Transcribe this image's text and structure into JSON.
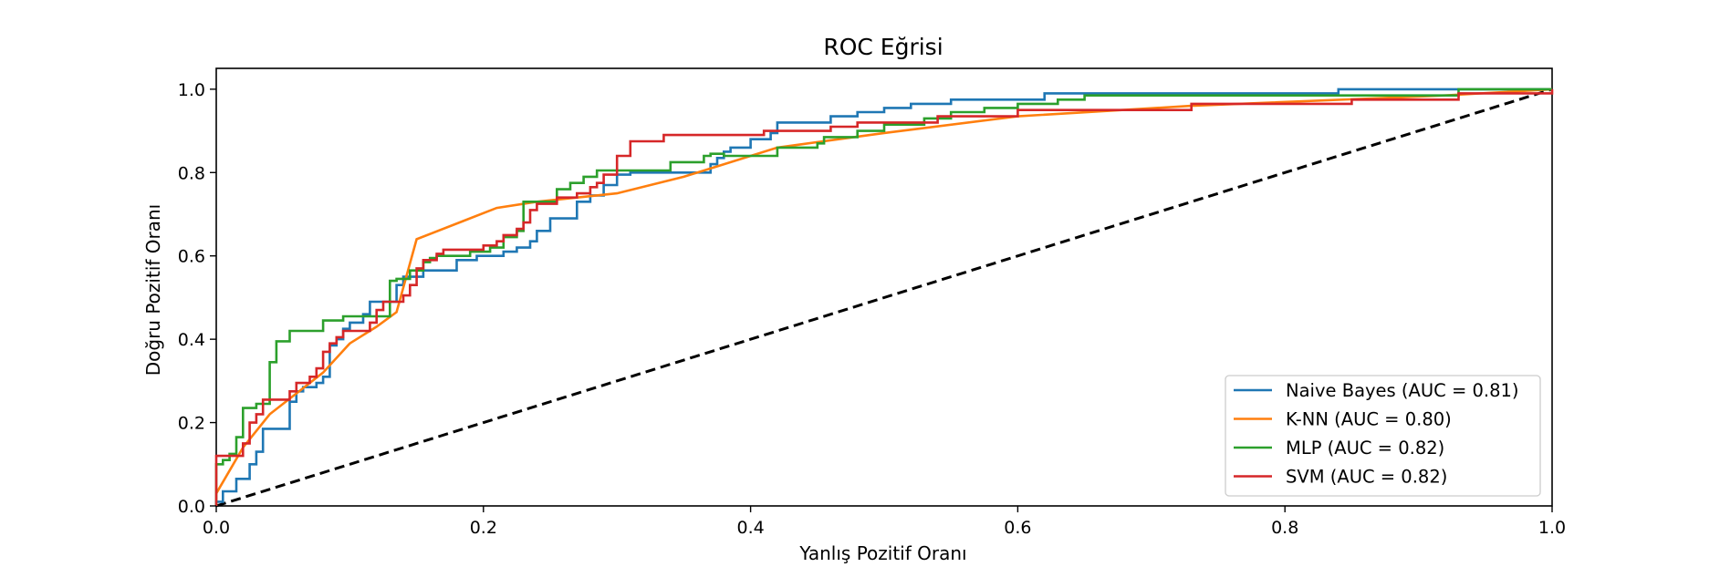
{
  "chart_data": {
    "type": "line",
    "title": "ROC Eğrisi",
    "xlabel": "Yanlış Pozitif Oranı",
    "ylabel": "Doğru Pozitif Oranı",
    "xlim": [
      0,
      1
    ],
    "ylim": [
      0,
      1.05
    ],
    "xticks": [
      0.0,
      0.2,
      0.4,
      0.6,
      0.8,
      1.0
    ],
    "yticks": [
      0.0,
      0.2,
      0.4,
      0.6,
      0.8,
      1.0
    ],
    "xtick_labels": [
      "0.0",
      "0.2",
      "0.4",
      "0.6",
      "0.8",
      "1.0"
    ],
    "ytick_labels": [
      "0.0",
      "0.2",
      "0.4",
      "0.6",
      "0.8",
      "1.0"
    ],
    "grid": false,
    "legend_position": "lower-right",
    "series": [
      {
        "name": "Naive Bayes (AUC = 0.81)",
        "color": "#1f77b4",
        "step": true,
        "points": [
          [
            0,
            0
          ],
          [
            0,
            0.01
          ],
          [
            0.005,
            0.01
          ],
          [
            0.005,
            0.035
          ],
          [
            0.015,
            0.035
          ],
          [
            0.015,
            0.065
          ],
          [
            0.025,
            0.065
          ],
          [
            0.025,
            0.1
          ],
          [
            0.03,
            0.1
          ],
          [
            0.03,
            0.13
          ],
          [
            0.035,
            0.13
          ],
          [
            0.035,
            0.185
          ],
          [
            0.055,
            0.185
          ],
          [
            0.055,
            0.25
          ],
          [
            0.06,
            0.25
          ],
          [
            0.06,
            0.275
          ],
          [
            0.065,
            0.275
          ],
          [
            0.065,
            0.285
          ],
          [
            0.075,
            0.285
          ],
          [
            0.075,
            0.295
          ],
          [
            0.08,
            0.295
          ],
          [
            0.08,
            0.31
          ],
          [
            0.085,
            0.31
          ],
          [
            0.085,
            0.385
          ],
          [
            0.09,
            0.385
          ],
          [
            0.09,
            0.4
          ],
          [
            0.095,
            0.4
          ],
          [
            0.095,
            0.425
          ],
          [
            0.1,
            0.425
          ],
          [
            0.1,
            0.44
          ],
          [
            0.11,
            0.44
          ],
          [
            0.11,
            0.46
          ],
          [
            0.115,
            0.46
          ],
          [
            0.115,
            0.49
          ],
          [
            0.135,
            0.49
          ],
          [
            0.135,
            0.53
          ],
          [
            0.14,
            0.53
          ],
          [
            0.14,
            0.55
          ],
          [
            0.155,
            0.55
          ],
          [
            0.155,
            0.565
          ],
          [
            0.18,
            0.565
          ],
          [
            0.18,
            0.59
          ],
          [
            0.195,
            0.59
          ],
          [
            0.195,
            0.6
          ],
          [
            0.215,
            0.6
          ],
          [
            0.215,
            0.61
          ],
          [
            0.225,
            0.61
          ],
          [
            0.225,
            0.62
          ],
          [
            0.235,
            0.62
          ],
          [
            0.235,
            0.635
          ],
          [
            0.24,
            0.635
          ],
          [
            0.24,
            0.66
          ],
          [
            0.25,
            0.66
          ],
          [
            0.25,
            0.69
          ],
          [
            0.27,
            0.69
          ],
          [
            0.27,
            0.73
          ],
          [
            0.28,
            0.73
          ],
          [
            0.28,
            0.745
          ],
          [
            0.29,
            0.745
          ],
          [
            0.29,
            0.77
          ],
          [
            0.3,
            0.77
          ],
          [
            0.3,
            0.795
          ],
          [
            0.31,
            0.795
          ],
          [
            0.31,
            0.8
          ],
          [
            0.37,
            0.8
          ],
          [
            0.37,
            0.82
          ],
          [
            0.375,
            0.82
          ],
          [
            0.375,
            0.835
          ],
          [
            0.38,
            0.835
          ],
          [
            0.38,
            0.85
          ],
          [
            0.385,
            0.85
          ],
          [
            0.385,
            0.86
          ],
          [
            0.4,
            0.86
          ],
          [
            0.4,
            0.88
          ],
          [
            0.415,
            0.88
          ],
          [
            0.415,
            0.895
          ],
          [
            0.42,
            0.895
          ],
          [
            0.42,
            0.92
          ],
          [
            0.46,
            0.92
          ],
          [
            0.46,
            0.935
          ],
          [
            0.48,
            0.935
          ],
          [
            0.48,
            0.945
          ],
          [
            0.5,
            0.945
          ],
          [
            0.5,
            0.955
          ],
          [
            0.52,
            0.955
          ],
          [
            0.52,
            0.965
          ],
          [
            0.55,
            0.965
          ],
          [
            0.55,
            0.975
          ],
          [
            0.62,
            0.975
          ],
          [
            0.62,
            0.99
          ],
          [
            0.84,
            0.99
          ],
          [
            0.84,
            1.0
          ],
          [
            1.0,
            1.0
          ]
        ]
      },
      {
        "name": "K-NN (AUC = 0.80)",
        "color": "#ff7f0e",
        "step": false,
        "points": [
          [
            0,
            0.03
          ],
          [
            0.02,
            0.14
          ],
          [
            0.04,
            0.22
          ],
          [
            0.06,
            0.27
          ],
          [
            0.08,
            0.32
          ],
          [
            0.1,
            0.39
          ],
          [
            0.12,
            0.43
          ],
          [
            0.135,
            0.465
          ],
          [
            0.15,
            0.64
          ],
          [
            0.21,
            0.715
          ],
          [
            0.24,
            0.73
          ],
          [
            0.3,
            0.75
          ],
          [
            0.35,
            0.79
          ],
          [
            0.42,
            0.86
          ],
          [
            0.5,
            0.895
          ],
          [
            0.6,
            0.935
          ],
          [
            0.73,
            0.96
          ],
          [
            0.92,
            0.985
          ],
          [
            1.0,
            1.0
          ]
        ]
      },
      {
        "name": "MLP (AUC = 0.82)",
        "color": "#2ca02c",
        "step": true,
        "points": [
          [
            0,
            0
          ],
          [
            0,
            0.1
          ],
          [
            0.005,
            0.1
          ],
          [
            0.005,
            0.11
          ],
          [
            0.01,
            0.11
          ],
          [
            0.01,
            0.125
          ],
          [
            0.015,
            0.125
          ],
          [
            0.015,
            0.165
          ],
          [
            0.02,
            0.165
          ],
          [
            0.02,
            0.235
          ],
          [
            0.03,
            0.235
          ],
          [
            0.03,
            0.245
          ],
          [
            0.04,
            0.245
          ],
          [
            0.04,
            0.345
          ],
          [
            0.045,
            0.345
          ],
          [
            0.045,
            0.395
          ],
          [
            0.055,
            0.395
          ],
          [
            0.055,
            0.42
          ],
          [
            0.08,
            0.42
          ],
          [
            0.08,
            0.445
          ],
          [
            0.095,
            0.445
          ],
          [
            0.095,
            0.455
          ],
          [
            0.13,
            0.455
          ],
          [
            0.13,
            0.54
          ],
          [
            0.135,
            0.54
          ],
          [
            0.135,
            0.545
          ],
          [
            0.145,
            0.545
          ],
          [
            0.145,
            0.565
          ],
          [
            0.155,
            0.565
          ],
          [
            0.155,
            0.585
          ],
          [
            0.16,
            0.585
          ],
          [
            0.16,
            0.595
          ],
          [
            0.165,
            0.595
          ],
          [
            0.165,
            0.6
          ],
          [
            0.19,
            0.6
          ],
          [
            0.19,
            0.61
          ],
          [
            0.205,
            0.61
          ],
          [
            0.205,
            0.62
          ],
          [
            0.215,
            0.62
          ],
          [
            0.215,
            0.645
          ],
          [
            0.225,
            0.645
          ],
          [
            0.225,
            0.66
          ],
          [
            0.23,
            0.66
          ],
          [
            0.23,
            0.73
          ],
          [
            0.255,
            0.73
          ],
          [
            0.255,
            0.76
          ],
          [
            0.265,
            0.76
          ],
          [
            0.265,
            0.775
          ],
          [
            0.275,
            0.775
          ],
          [
            0.275,
            0.79
          ],
          [
            0.285,
            0.79
          ],
          [
            0.285,
            0.805
          ],
          [
            0.34,
            0.805
          ],
          [
            0.34,
            0.825
          ],
          [
            0.365,
            0.825
          ],
          [
            0.365,
            0.84
          ],
          [
            0.37,
            0.84
          ],
          [
            0.37,
            0.845
          ],
          [
            0.38,
            0.845
          ],
          [
            0.38,
            0.84
          ],
          [
            0.42,
            0.84
          ],
          [
            0.42,
            0.86
          ],
          [
            0.45,
            0.86
          ],
          [
            0.45,
            0.87
          ],
          [
            0.455,
            0.87
          ],
          [
            0.455,
            0.885
          ],
          [
            0.48,
            0.885
          ],
          [
            0.48,
            0.9
          ],
          [
            0.5,
            0.9
          ],
          [
            0.5,
            0.915
          ],
          [
            0.53,
            0.915
          ],
          [
            0.53,
            0.93
          ],
          [
            0.55,
            0.93
          ],
          [
            0.55,
            0.945
          ],
          [
            0.575,
            0.945
          ],
          [
            0.575,
            0.955
          ],
          [
            0.6,
            0.955
          ],
          [
            0.6,
            0.965
          ],
          [
            0.63,
            0.965
          ],
          [
            0.63,
            0.975
          ],
          [
            0.65,
            0.975
          ],
          [
            0.65,
            0.985
          ],
          [
            0.93,
            0.985
          ],
          [
            0.93,
            1.0
          ],
          [
            1.0,
            1.0
          ]
        ]
      },
      {
        "name": "SVM (AUC = 0.82)",
        "color": "#d62728",
        "step": true,
        "points": [
          [
            0,
            0
          ],
          [
            0,
            0.12
          ],
          [
            0.02,
            0.12
          ],
          [
            0.02,
            0.15
          ],
          [
            0.025,
            0.15
          ],
          [
            0.025,
            0.2
          ],
          [
            0.03,
            0.2
          ],
          [
            0.03,
            0.22
          ],
          [
            0.035,
            0.22
          ],
          [
            0.035,
            0.255
          ],
          [
            0.055,
            0.255
          ],
          [
            0.055,
            0.275
          ],
          [
            0.06,
            0.275
          ],
          [
            0.06,
            0.295
          ],
          [
            0.07,
            0.295
          ],
          [
            0.07,
            0.31
          ],
          [
            0.075,
            0.31
          ],
          [
            0.075,
            0.33
          ],
          [
            0.08,
            0.33
          ],
          [
            0.08,
            0.37
          ],
          [
            0.085,
            0.37
          ],
          [
            0.085,
            0.39
          ],
          [
            0.09,
            0.39
          ],
          [
            0.09,
            0.405
          ],
          [
            0.095,
            0.405
          ],
          [
            0.095,
            0.42
          ],
          [
            0.115,
            0.42
          ],
          [
            0.115,
            0.44
          ],
          [
            0.12,
            0.44
          ],
          [
            0.12,
            0.47
          ],
          [
            0.125,
            0.47
          ],
          [
            0.125,
            0.49
          ],
          [
            0.14,
            0.49
          ],
          [
            0.14,
            0.505
          ],
          [
            0.145,
            0.505
          ],
          [
            0.145,
            0.53
          ],
          [
            0.15,
            0.53
          ],
          [
            0.15,
            0.57
          ],
          [
            0.155,
            0.57
          ],
          [
            0.155,
            0.59
          ],
          [
            0.165,
            0.59
          ],
          [
            0.165,
            0.605
          ],
          [
            0.17,
            0.605
          ],
          [
            0.17,
            0.615
          ],
          [
            0.2,
            0.615
          ],
          [
            0.2,
            0.625
          ],
          [
            0.21,
            0.625
          ],
          [
            0.21,
            0.635
          ],
          [
            0.215,
            0.635
          ],
          [
            0.215,
            0.65
          ],
          [
            0.225,
            0.65
          ],
          [
            0.225,
            0.665
          ],
          [
            0.23,
            0.665
          ],
          [
            0.23,
            0.68
          ],
          [
            0.235,
            0.68
          ],
          [
            0.235,
            0.71
          ],
          [
            0.24,
            0.71
          ],
          [
            0.24,
            0.725
          ],
          [
            0.255,
            0.725
          ],
          [
            0.255,
            0.74
          ],
          [
            0.27,
            0.74
          ],
          [
            0.27,
            0.75
          ],
          [
            0.28,
            0.75
          ],
          [
            0.28,
            0.765
          ],
          [
            0.285,
            0.765
          ],
          [
            0.285,
            0.775
          ],
          [
            0.29,
            0.775
          ],
          [
            0.29,
            0.795
          ],
          [
            0.3,
            0.795
          ],
          [
            0.3,
            0.84
          ],
          [
            0.31,
            0.84
          ],
          [
            0.31,
            0.875
          ],
          [
            0.335,
            0.875
          ],
          [
            0.335,
            0.89
          ],
          [
            0.41,
            0.89
          ],
          [
            0.41,
            0.9
          ],
          [
            0.46,
            0.9
          ],
          [
            0.46,
            0.91
          ],
          [
            0.48,
            0.91
          ],
          [
            0.48,
            0.92
          ],
          [
            0.54,
            0.92
          ],
          [
            0.54,
            0.935
          ],
          [
            0.6,
            0.935
          ],
          [
            0.6,
            0.95
          ],
          [
            0.73,
            0.95
          ],
          [
            0.73,
            0.965
          ],
          [
            0.85,
            0.965
          ],
          [
            0.85,
            0.975
          ],
          [
            0.93,
            0.975
          ],
          [
            0.93,
            0.99
          ],
          [
            1.0,
            0.99
          ],
          [
            1.0,
            1.0
          ]
        ]
      }
    ],
    "reference_line": {
      "color": "#000000",
      "points": [
        [
          0,
          0
        ],
        [
          1,
          1
        ]
      ]
    }
  }
}
